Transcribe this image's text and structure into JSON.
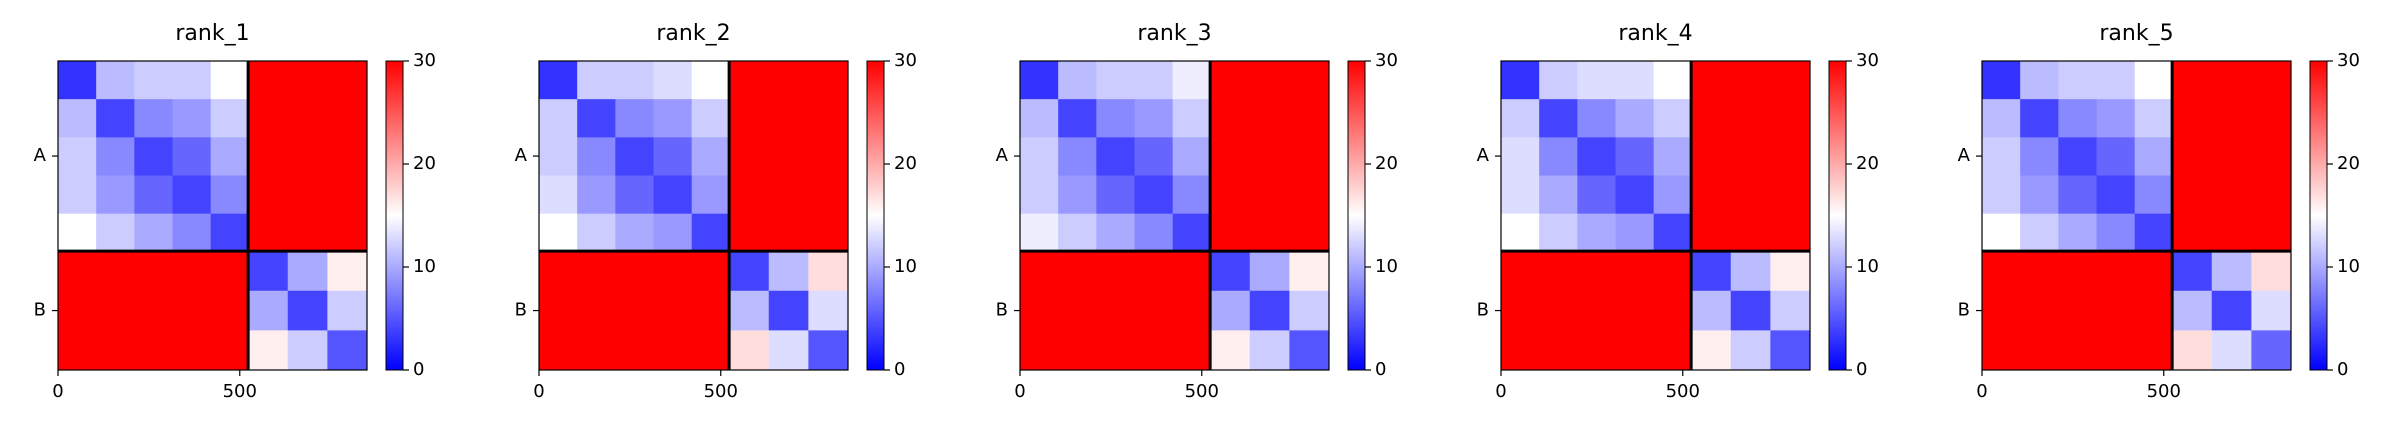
{
  "chart_data": [
    {
      "type": "heatmap",
      "title": "rank_1",
      "colormap": "bwr",
      "bins": [
        0,
        105,
        210,
        315,
        420,
        523,
        632,
        741,
        850
      ],
      "xlim": [
        0,
        850
      ],
      "ylim": [
        850,
        0
      ],
      "xticks": [
        0,
        500
      ],
      "yticks": [
        {
          "value": 261.5,
          "label": "A"
        },
        {
          "value": 686.5,
          "label": "B"
        }
      ],
      "clim": [
        0,
        30
      ],
      "cticks": [
        0,
        10,
        20,
        30
      ],
      "chain_breaks": [
        523
      ],
      "values": [
        [
          3,
          11,
          12,
          12,
          15,
          30,
          30,
          30
        ],
        [
          11,
          4,
          8,
          9,
          12,
          30,
          30,
          30
        ],
        [
          12,
          8,
          4,
          6,
          10,
          30,
          30,
          30
        ],
        [
          12,
          9,
          6,
          4,
          8,
          30,
          30,
          30
        ],
        [
          15,
          12,
          10,
          8,
          4,
          30,
          30,
          30
        ],
        [
          30,
          30,
          30,
          30,
          30,
          4,
          10,
          16
        ],
        [
          30,
          30,
          30,
          30,
          30,
          10,
          4,
          12
        ],
        [
          30,
          30,
          30,
          30,
          30,
          16,
          12,
          5
        ]
      ]
    },
    {
      "type": "heatmap",
      "title": "rank_2",
      "colormap": "bwr",
      "bins": [
        0,
        105,
        210,
        315,
        420,
        523,
        632,
        741,
        850
      ],
      "xlim": [
        0,
        850
      ],
      "ylim": [
        850,
        0
      ],
      "xticks": [
        0,
        500
      ],
      "yticks": [
        {
          "value": 261.5,
          "label": "A"
        },
        {
          "value": 686.5,
          "label": "B"
        }
      ],
      "clim": [
        0,
        30
      ],
      "cticks": [
        0,
        10,
        20,
        30
      ],
      "chain_breaks": [
        523
      ],
      "values": [
        [
          3,
          12,
          12,
          13,
          15,
          30,
          30,
          30
        ],
        [
          12,
          4,
          8,
          9,
          12,
          30,
          30,
          30
        ],
        [
          12,
          8,
          4,
          6,
          10,
          30,
          30,
          30
        ],
        [
          13,
          9,
          6,
          4,
          9,
          30,
          30,
          30
        ],
        [
          15,
          12,
          10,
          9,
          4,
          30,
          30,
          30
        ],
        [
          30,
          30,
          30,
          30,
          30,
          4,
          11,
          17
        ],
        [
          30,
          30,
          30,
          30,
          30,
          11,
          4,
          13
        ],
        [
          30,
          30,
          30,
          30,
          30,
          17,
          13,
          5
        ]
      ]
    },
    {
      "type": "heatmap",
      "title": "rank_3",
      "colormap": "bwr",
      "bins": [
        0,
        105,
        210,
        315,
        420,
        523,
        632,
        741,
        850
      ],
      "xlim": [
        0,
        850
      ],
      "ylim": [
        850,
        0
      ],
      "xticks": [
        0,
        500
      ],
      "yticks": [
        {
          "value": 261.5,
          "label": "A"
        },
        {
          "value": 686.5,
          "label": "B"
        }
      ],
      "clim": [
        0,
        30
      ],
      "cticks": [
        0,
        10,
        20,
        30
      ],
      "chain_breaks": [
        523
      ],
      "values": [
        [
          3,
          11,
          12,
          12,
          14,
          30,
          30,
          30
        ],
        [
          11,
          4,
          8,
          9,
          12,
          30,
          30,
          30
        ],
        [
          12,
          8,
          4,
          6,
          10,
          30,
          30,
          30
        ],
        [
          12,
          9,
          6,
          4,
          8,
          30,
          30,
          30
        ],
        [
          14,
          12,
          10,
          8,
          4,
          30,
          30,
          30
        ],
        [
          30,
          30,
          30,
          30,
          30,
          4,
          10,
          16
        ],
        [
          30,
          30,
          30,
          30,
          30,
          10,
          4,
          12
        ],
        [
          30,
          30,
          30,
          30,
          30,
          16,
          12,
          5
        ]
      ]
    },
    {
      "type": "heatmap",
      "title": "rank_4",
      "colormap": "bwr",
      "bins": [
        0,
        105,
        210,
        315,
        420,
        523,
        632,
        741,
        850
      ],
      "xlim": [
        0,
        850
      ],
      "ylim": [
        850,
        0
      ],
      "xticks": [
        0,
        500
      ],
      "yticks": [
        {
          "value": 261.5,
          "label": "A"
        },
        {
          "value": 686.5,
          "label": "B"
        }
      ],
      "clim": [
        0,
        30
      ],
      "cticks": [
        0,
        10,
        20,
        30
      ],
      "chain_breaks": [
        523
      ],
      "values": [
        [
          3,
          12,
          13,
          13,
          15,
          30,
          30,
          30
        ],
        [
          12,
          4,
          8,
          10,
          12,
          30,
          30,
          30
        ],
        [
          13,
          8,
          4,
          6,
          10,
          30,
          30,
          30
        ],
        [
          13,
          10,
          6,
          4,
          9,
          30,
          30,
          30
        ],
        [
          15,
          12,
          10,
          9,
          4,
          30,
          30,
          30
        ],
        [
          30,
          30,
          30,
          30,
          30,
          4,
          11,
          16
        ],
        [
          30,
          30,
          30,
          30,
          30,
          11,
          4,
          12
        ],
        [
          30,
          30,
          30,
          30,
          30,
          16,
          12,
          5
        ]
      ]
    },
    {
      "type": "heatmap",
      "title": "rank_5",
      "colormap": "bwr",
      "bins": [
        0,
        105,
        210,
        315,
        420,
        523,
        632,
        741,
        850
      ],
      "xlim": [
        0,
        850
      ],
      "ylim": [
        850,
        0
      ],
      "xticks": [
        0,
        500
      ],
      "yticks": [
        {
          "value": 261.5,
          "label": "A"
        },
        {
          "value": 686.5,
          "label": "B"
        }
      ],
      "clim": [
        0,
        30
      ],
      "cticks": [
        0,
        10,
        20,
        30
      ],
      "chain_breaks": [
        523
      ],
      "values": [
        [
          3,
          11,
          12,
          12,
          15,
          30,
          30,
          30
        ],
        [
          11,
          4,
          8,
          9,
          12,
          30,
          30,
          30
        ],
        [
          12,
          8,
          4,
          6,
          10,
          30,
          30,
          30
        ],
        [
          12,
          9,
          6,
          4,
          8,
          30,
          30,
          30
        ],
        [
          15,
          12,
          10,
          8,
          4,
          30,
          30,
          30
        ],
        [
          30,
          30,
          30,
          30,
          30,
          4,
          11,
          17
        ],
        [
          30,
          30,
          30,
          30,
          30,
          11,
          4,
          13
        ],
        [
          30,
          30,
          30,
          30,
          30,
          17,
          13,
          6
        ]
      ]
    }
  ]
}
